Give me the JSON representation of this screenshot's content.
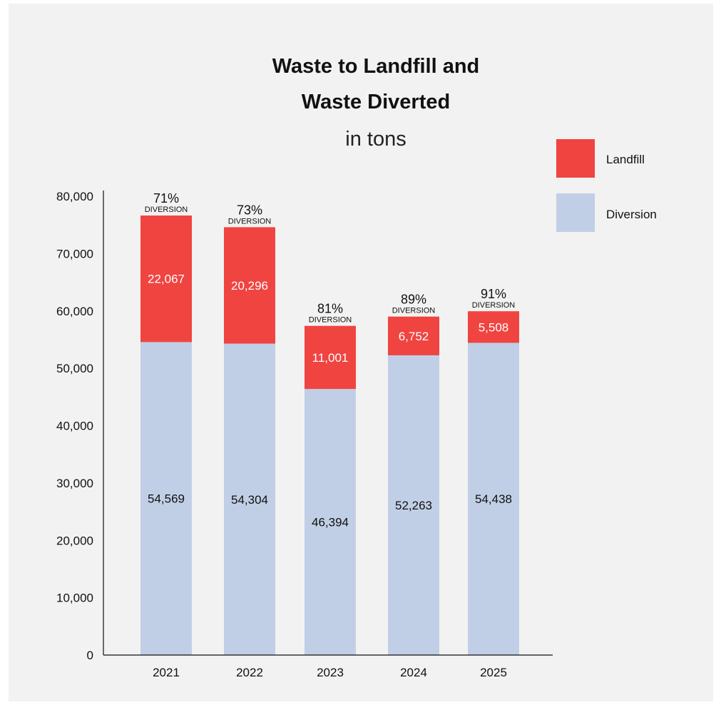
{
  "chart_data": {
    "type": "bar",
    "stacked": true,
    "title_lines": [
      "Waste to Landfill and",
      "Waste Diverted"
    ],
    "subtitle": "in tons",
    "categories": [
      "2021",
      "2022",
      "2023",
      "2024",
      "2025"
    ],
    "series": [
      {
        "name": "Diversion",
        "color": "#c1cfe6",
        "label_color": "#111111",
        "values": [
          54569,
          54304,
          46394,
          52263,
          54438
        ],
        "labels": [
          "54,569",
          "54,304",
          "46,394",
          "52,263",
          "54,438"
        ]
      },
      {
        "name": "Landfill",
        "color": "#f04441",
        "label_color": "#ffffff",
        "values": [
          22067,
          20296,
          11001,
          6752,
          5508
        ],
        "labels": [
          "22,067",
          "20,296",
          "11,001",
          "6,752",
          "5,508"
        ]
      }
    ],
    "diversion_rate": [
      "71%",
      "73%",
      "81%",
      "89%",
      "91%"
    ],
    "diversion_caption": "DIVERSION",
    "ylim": [
      0,
      80000
    ],
    "yticks": [
      0,
      10000,
      20000,
      30000,
      40000,
      50000,
      60000,
      70000,
      80000
    ],
    "ytick_labels": [
      "0",
      "10,000",
      "20,000",
      "30,000",
      "40,000",
      "50,000",
      "60,000",
      "70,000",
      "80,000"
    ],
    "legend": [
      "Landfill",
      "Diversion"
    ],
    "legend_position": "top-right",
    "grid": false,
    "background": "#f2f2f2"
  }
}
